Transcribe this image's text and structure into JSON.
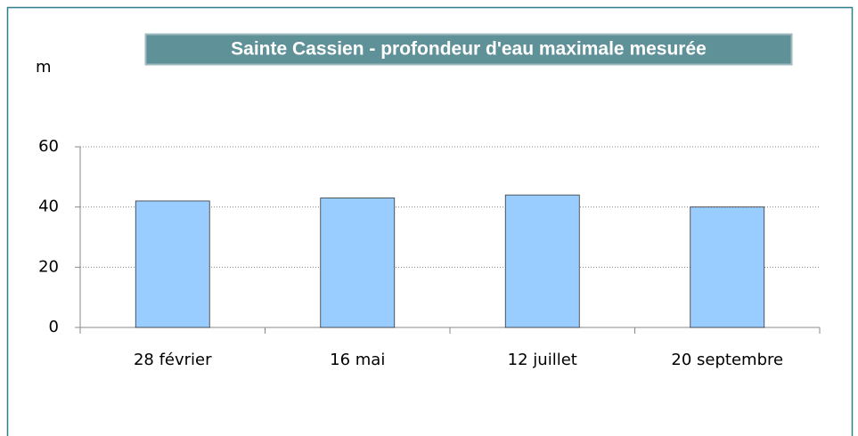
{
  "chart_data": {
    "type": "bar",
    "title": "Sainte Cassien - profondeur d'eau maximale mesurée",
    "y_label": "m",
    "categories": [
      "28 février",
      "16 mai",
      "12 juillet",
      "20 septembre"
    ],
    "values": [
      42,
      43,
      44,
      40
    ],
    "color": "#99ccff",
    "ylim": [
      0,
      60
    ],
    "yticks": [
      0,
      20,
      40,
      60
    ],
    "grid": true
  }
}
